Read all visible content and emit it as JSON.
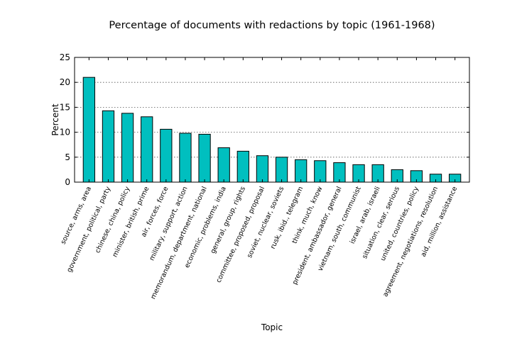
{
  "chart_data": {
    "type": "bar",
    "title": "Percentage of documents with redactions by topic (1961-1968)",
    "xlabel": "Topic",
    "ylabel": "Percent",
    "ylim": [
      0,
      25
    ],
    "yticks": [
      0,
      5,
      10,
      15,
      20,
      25
    ],
    "grid": "y",
    "bar_color": "#00bfbf",
    "categories": [
      "source, arms, area",
      "government, political, party",
      "chinese, china, policy",
      "minister, british, prime",
      "air, forces, force",
      "military, support, action",
      "memorandum, department, national",
      "economic, problems, india",
      "general, group, rights",
      "committee, proposed, proposal",
      "soviet, nuclear, soviets",
      "rusk, ibid., telegram",
      "think, much, know",
      "president, ambassador, general",
      "vietnam, south, communist",
      "israel, arab, israeli",
      "situation, clear, serious",
      "united, countries, policy",
      "agreement, negotiations, resolution",
      "aid, million, assistance"
    ],
    "values": [
      21.0,
      14.3,
      13.8,
      13.1,
      10.6,
      9.8,
      9.6,
      6.9,
      6.2,
      5.3,
      5.0,
      4.5,
      4.3,
      3.9,
      3.5,
      3.5,
      2.5,
      2.3,
      1.6,
      1.6
    ]
  }
}
